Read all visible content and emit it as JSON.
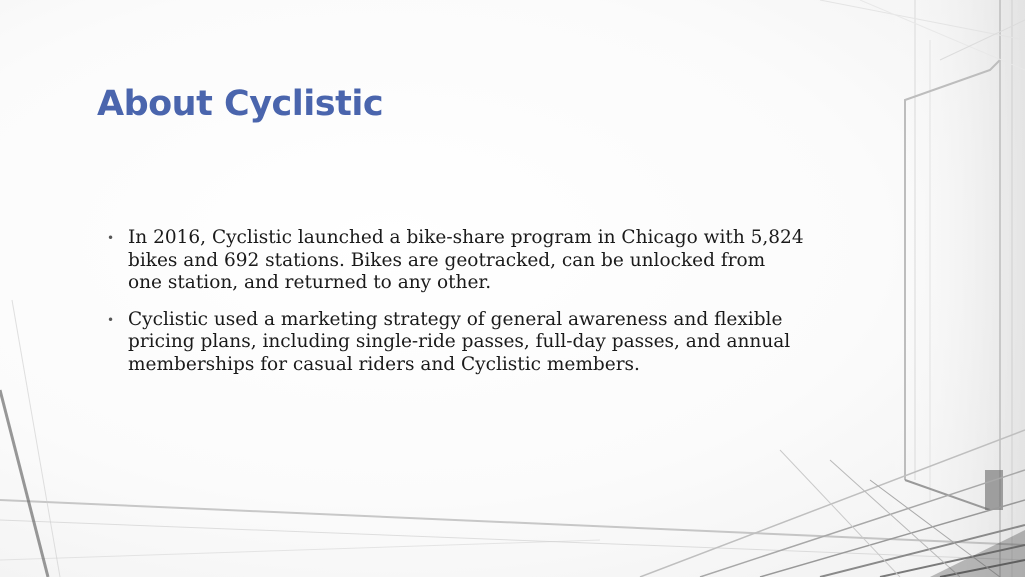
{
  "slide": {
    "title": "About Cyclistic",
    "bullets": [
      {
        "marker": "•",
        "text": "In 2016, Cyclistic launched a bike-share program in Chicago with 5,824 bikes and 692 stations. Bikes are geotracked, can be unlocked from one station, and returned to any other."
      },
      {
        "marker": "•",
        "text": "Cyclistic used a marketing strategy of general awareness and flexible pricing plans, including single-ride passes, full-day passes, and annual memberships for casual riders and Cyclistic members."
      }
    ]
  },
  "colors": {
    "title": "#4a65ad",
    "body_text": "#1a1a1a"
  }
}
